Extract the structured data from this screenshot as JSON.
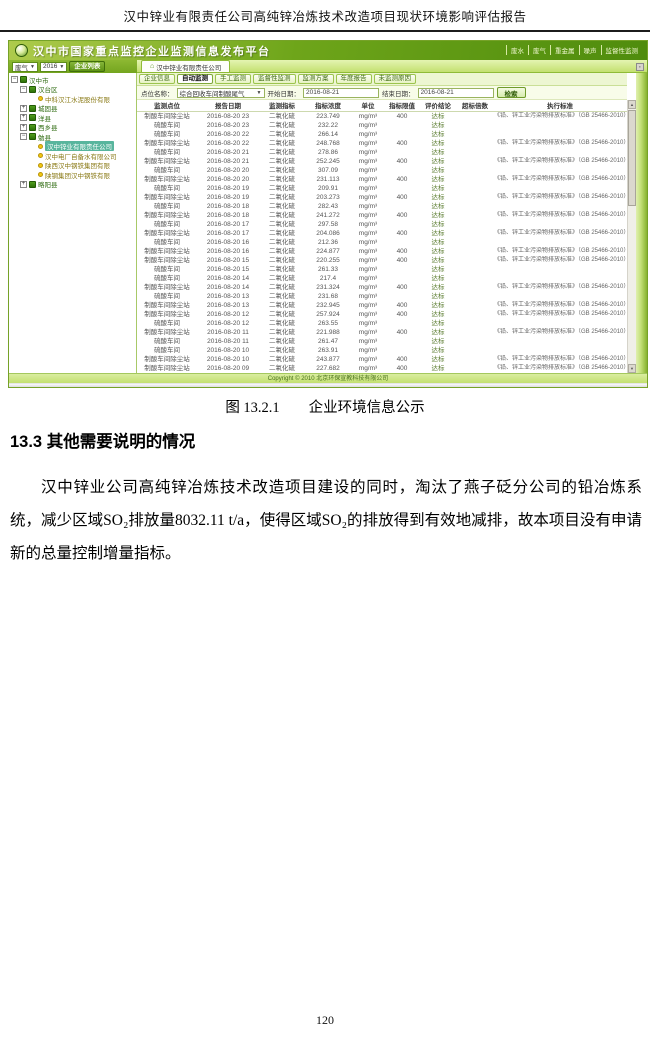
{
  "page": {
    "header_title": "汉中锌业有限责任公司高纯锌冶炼技术改造项目现状环境影响评估报告",
    "figure_caption": "图 13.2.1　　企业环境信息公示",
    "section_heading": "13.3 其他需要说明的情况",
    "paragraph": "汉中锌业公司高纯锌冶炼技术改造项目建设的同时，淘汰了燕子砭分公司的铅冶炼系统，减少区域SO₂排放量8032.11 t/a，使得区域SO₂的排放得到有效地减排，故本项目没有申请新的总量控制增量指标。",
    "page_number": "120"
  },
  "ui": {
    "icons": {
      "home": "⌂",
      "caret": "▼",
      "scroll_up": "▲",
      "scroll_down": "▼",
      "strip_button": "▪"
    },
    "colors": {
      "banner_green": "#6ea51a",
      "tab_strip_green": "#c3e070",
      "highlight_teal": "#58b59d",
      "company_icon_yellow": "#f2c712"
    },
    "banner": {
      "title": "汉中市国家重点监控企业监测信息发布平台",
      "links": [
        "废水",
        "废气",
        "重金属",
        "噪声",
        "监督性监测"
      ]
    },
    "toolbar": {
      "media_select": "废气",
      "year_select": "2016",
      "list_button": "企业列表",
      "tab_label": "汉中锌业有限责任公司"
    },
    "tree": [
      {
        "label": "汉中市",
        "level": 0,
        "expander": "-",
        "icon": "building",
        "selected": false
      },
      {
        "label": "汉台区",
        "level": 1,
        "expander": "-",
        "icon": "building",
        "selected": false
      },
      {
        "label": "中科汉江水泥股份有限",
        "level": 2,
        "expander": "",
        "icon": "dot",
        "selected": false
      },
      {
        "label": "城固县",
        "level": 1,
        "expander": "+",
        "icon": "building",
        "selected": false
      },
      {
        "label": "洋县",
        "level": 1,
        "expander": "+",
        "icon": "building",
        "selected": false
      },
      {
        "label": "西乡县",
        "level": 1,
        "expander": "+",
        "icon": "building",
        "selected": false
      },
      {
        "label": "勉县",
        "level": 1,
        "expander": "-",
        "icon": "building",
        "selected": false
      },
      {
        "label": "汉中锌业有限责任公司",
        "level": 2,
        "expander": "",
        "icon": "dot",
        "selected": true
      },
      {
        "label": "汉中电厂自备水有限公司",
        "level": 2,
        "expander": "",
        "icon": "dot",
        "selected": false
      },
      {
        "label": "陕西汉中钢铁集团有限",
        "level": 2,
        "expander": "",
        "icon": "dot",
        "selected": false
      },
      {
        "label": "陕钢集团汉中钢铁有限",
        "level": 2,
        "expander": "",
        "icon": "dot",
        "selected": false
      },
      {
        "label": "略阳县",
        "level": 1,
        "expander": "+",
        "icon": "building",
        "selected": false
      }
    ],
    "tabs": [
      {
        "label": "企业信息",
        "selected": false
      },
      {
        "label": "自动监测",
        "selected": true
      },
      {
        "label": "手工监测",
        "selected": false
      },
      {
        "label": "监督性监测",
        "selected": false
      },
      {
        "label": "监测方案",
        "selected": false
      },
      {
        "label": "年度报告",
        "selected": false
      },
      {
        "label": "未监测原因",
        "selected": false
      }
    ],
    "filter": {
      "point_label": "点位名称：",
      "point_value": "综合回收车间制酸尾气",
      "start_label": "开始日期：",
      "start_value": "2016-08-21",
      "end_label": "结束日期：",
      "end_value": "2016-08-21",
      "search_button": "检索"
    },
    "table": {
      "headers": [
        "监测点位",
        "报告日期",
        "监测指标",
        "指标浓度",
        "单位",
        "指标限值",
        "评价结论",
        "超标倍数",
        "执行标准"
      ],
      "standard_text": "《铅、锌工业污染物排放标准》（GB 25466-2010）表5限值",
      "rows": [
        {
          "point": "制酸车间除尘站",
          "date": "2016-08-20 23",
          "indicator": "二氧化硫",
          "value": "223.749",
          "unit": "mg/m³",
          "limit": "400",
          "result": "达标",
          "exceed": "",
          "std": true
        },
        {
          "point": "硫酸车间",
          "date": "2016-08-20 23",
          "indicator": "二氧化硫",
          "value": "232.22",
          "unit": "mg/m³",
          "limit": "",
          "result": "达标",
          "exceed": "",
          "std": false
        },
        {
          "point": "硫酸车间",
          "date": "2016-08-20 22",
          "indicator": "二氧化硫",
          "value": "266.14",
          "unit": "mg/m³",
          "limit": "",
          "result": "达标",
          "exceed": "",
          "std": false
        },
        {
          "point": "制酸车间除尘站",
          "date": "2016-08-20 22",
          "indicator": "二氧化硫",
          "value": "248.768",
          "unit": "mg/m³",
          "limit": "400",
          "result": "达标",
          "exceed": "",
          "std": true
        },
        {
          "point": "硫酸车间",
          "date": "2016-08-20 21",
          "indicator": "二氧化硫",
          "value": "278.86",
          "unit": "mg/m³",
          "limit": "",
          "result": "达标",
          "exceed": "",
          "std": false
        },
        {
          "point": "制酸车间除尘站",
          "date": "2016-08-20 21",
          "indicator": "二氧化硫",
          "value": "252.245",
          "unit": "mg/m³",
          "limit": "400",
          "result": "达标",
          "exceed": "",
          "std": true
        },
        {
          "point": "硫酸车间",
          "date": "2016-08-20 20",
          "indicator": "二氧化硫",
          "value": "307.09",
          "unit": "mg/m³",
          "limit": "",
          "result": "达标",
          "exceed": "",
          "std": false
        },
        {
          "point": "制酸车间除尘站",
          "date": "2016-08-20 20",
          "indicator": "二氧化硫",
          "value": "231.113",
          "unit": "mg/m³",
          "limit": "400",
          "result": "达标",
          "exceed": "",
          "std": true
        },
        {
          "point": "硫酸车间",
          "date": "2016-08-20 19",
          "indicator": "二氧化硫",
          "value": "209.91",
          "unit": "mg/m³",
          "limit": "",
          "result": "达标",
          "exceed": "",
          "std": false
        },
        {
          "point": "制酸车间除尘站",
          "date": "2016-08-20 19",
          "indicator": "二氧化硫",
          "value": "203.273",
          "unit": "mg/m³",
          "limit": "400",
          "result": "达标",
          "exceed": "",
          "std": true
        },
        {
          "point": "硫酸车间",
          "date": "2016-08-20 18",
          "indicator": "二氧化硫",
          "value": "282.43",
          "unit": "mg/m³",
          "limit": "",
          "result": "达标",
          "exceed": "",
          "std": false
        },
        {
          "point": "制酸车间除尘站",
          "date": "2016-08-20 18",
          "indicator": "二氧化硫",
          "value": "241.272",
          "unit": "mg/m³",
          "limit": "400",
          "result": "达标",
          "exceed": "",
          "std": true
        },
        {
          "point": "硫酸车间",
          "date": "2016-08-20 17",
          "indicator": "二氧化硫",
          "value": "297.58",
          "unit": "mg/m³",
          "limit": "",
          "result": "达标",
          "exceed": "",
          "std": false
        },
        {
          "point": "制酸车间除尘站",
          "date": "2016-08-20 17",
          "indicator": "二氧化硫",
          "value": "204.086",
          "unit": "mg/m³",
          "limit": "400",
          "result": "达标",
          "exceed": "",
          "std": true
        },
        {
          "point": "硫酸车间",
          "date": "2016-08-20 16",
          "indicator": "二氧化硫",
          "value": "212.36",
          "unit": "mg/m³",
          "limit": "",
          "result": "达标",
          "exceed": "",
          "std": false
        },
        {
          "point": "制酸车间除尘站",
          "date": "2016-08-20 16",
          "indicator": "二氧化硫",
          "value": "224.877",
          "unit": "mg/m³",
          "limit": "400",
          "result": "达标",
          "exceed": "",
          "std": true
        },
        {
          "point": "制酸车间除尘站",
          "date": "2016-08-20 15",
          "indicator": "二氧化硫",
          "value": "220.255",
          "unit": "mg/m³",
          "limit": "400",
          "result": "达标",
          "exceed": "",
          "std": true
        },
        {
          "point": "硫酸车间",
          "date": "2016-08-20 15",
          "indicator": "二氧化硫",
          "value": "261.33",
          "unit": "mg/m³",
          "limit": "",
          "result": "达标",
          "exceed": "",
          "std": false
        },
        {
          "point": "硫酸车间",
          "date": "2016-08-20 14",
          "indicator": "二氧化硫",
          "value": "217.4",
          "unit": "mg/m³",
          "limit": "",
          "result": "达标",
          "exceed": "",
          "std": false
        },
        {
          "point": "制酸车间除尘站",
          "date": "2016-08-20 14",
          "indicator": "二氧化硫",
          "value": "231.324",
          "unit": "mg/m³",
          "limit": "400",
          "result": "达标",
          "exceed": "",
          "std": true
        },
        {
          "point": "硫酸车间",
          "date": "2016-08-20 13",
          "indicator": "二氧化硫",
          "value": "231.68",
          "unit": "mg/m³",
          "limit": "",
          "result": "达标",
          "exceed": "",
          "std": false
        },
        {
          "point": "制酸车间除尘站",
          "date": "2016-08-20 13",
          "indicator": "二氧化硫",
          "value": "232.945",
          "unit": "mg/m³",
          "limit": "400",
          "result": "达标",
          "exceed": "",
          "std": true
        },
        {
          "point": "制酸车间除尘站",
          "date": "2016-08-20 12",
          "indicator": "二氧化硫",
          "value": "257.924",
          "unit": "mg/m³",
          "limit": "400",
          "result": "达标",
          "exceed": "",
          "std": true
        },
        {
          "point": "硫酸车间",
          "date": "2016-08-20 12",
          "indicator": "二氧化硫",
          "value": "263.55",
          "unit": "mg/m³",
          "limit": "",
          "result": "达标",
          "exceed": "",
          "std": false
        },
        {
          "point": "制酸车间除尘站",
          "date": "2016-08-20 11",
          "indicator": "二氧化硫",
          "value": "221.988",
          "unit": "mg/m³",
          "limit": "400",
          "result": "达标",
          "exceed": "",
          "std": true
        },
        {
          "point": "硫酸车间",
          "date": "2016-08-20 11",
          "indicator": "二氧化硫",
          "value": "261.47",
          "unit": "mg/m³",
          "limit": "",
          "result": "达标",
          "exceed": "",
          "std": false
        },
        {
          "point": "硫酸车间",
          "date": "2016-08-20 10",
          "indicator": "二氧化硫",
          "value": "263.91",
          "unit": "mg/m³",
          "limit": "",
          "result": "达标",
          "exceed": "",
          "std": false
        },
        {
          "point": "制酸车间除尘站",
          "date": "2016-08-20 10",
          "indicator": "二氧化硫",
          "value": "243.877",
          "unit": "mg/m³",
          "limit": "400",
          "result": "达标",
          "exceed": "",
          "std": true
        },
        {
          "point": "制酸车间除尘站",
          "date": "2016-08-20 09",
          "indicator": "二氧化硫",
          "value": "227.682",
          "unit": "mg/m³",
          "limit": "400",
          "result": "达标",
          "exceed": "",
          "std": true
        }
      ]
    },
    "footer": "Copyright © 2010 北京环保宣教科技有限公司"
  }
}
